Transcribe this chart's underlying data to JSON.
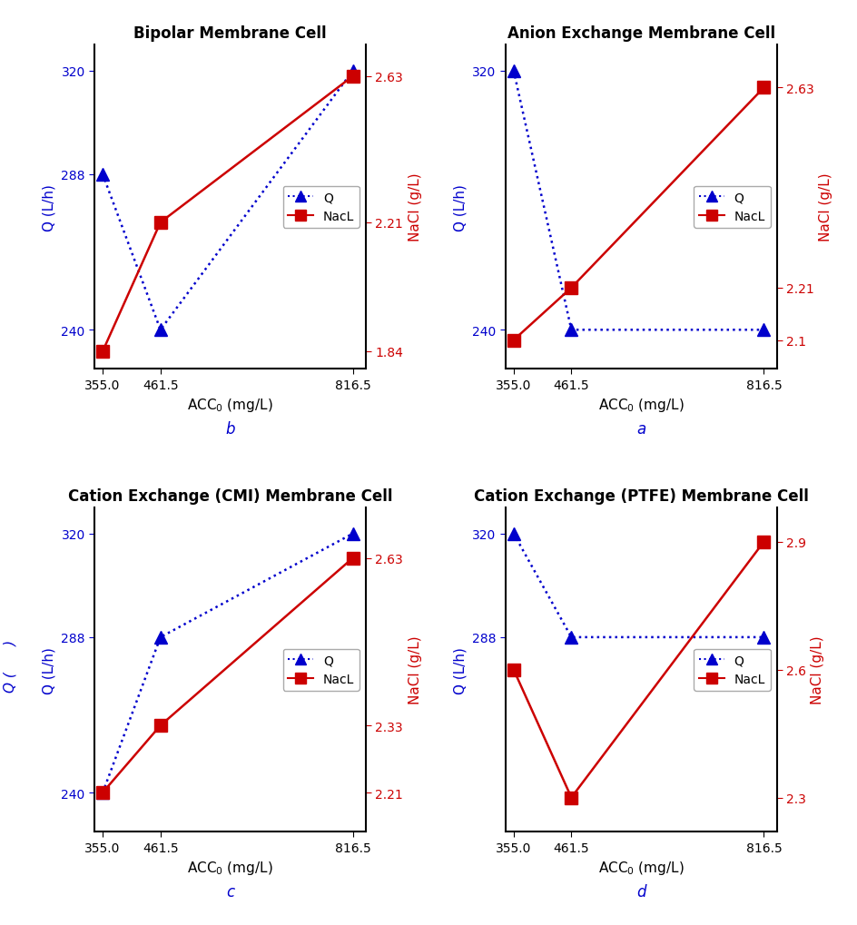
{
  "x": [
    355.0,
    461.5,
    816.5
  ],
  "panels": [
    {
      "title": "Bipolar Membrane Cell",
      "label": "b",
      "Q": [
        288,
        240,
        320
      ],
      "NaCl": [
        1.84,
        2.21,
        2.63
      ],
      "ylim_Q": [
        228,
        328
      ],
      "yticks_Q": [
        240,
        288,
        320
      ],
      "ylim_NaCl": [
        1.79,
        2.72
      ],
      "yticks_NaCl": [
        1.84,
        2.21,
        2.63
      ],
      "Q_line_color": "#0000cc",
      "Q_line_style": "dotted",
      "NaCl_line_color": "#cc0000",
      "NaCl_line_style": "solid",
      "ylabel_left": "Q (L/h)",
      "ylabel_right": "NaCl (g/L)",
      "legend_loc": "center right"
    },
    {
      "title": "Anion Exchange Membrane Cell",
      "label": "a",
      "Q": [
        320,
        240,
        240
      ],
      "NaCl": [
        2.1,
        2.21,
        2.63
      ],
      "ylim_Q": [
        228,
        328
      ],
      "yticks_Q": [
        240,
        320
      ],
      "ylim_NaCl": [
        2.04,
        2.72
      ],
      "yticks_NaCl": [
        2.1,
        2.21,
        2.63
      ],
      "Q_line_color": "#0000cc",
      "Q_line_style": "dotted",
      "NaCl_line_color": "#cc0000",
      "NaCl_line_style": "solid",
      "ylabel_left": "Q (L/h)",
      "ylabel_right": "NaCl (g/L)",
      "legend_loc": "center right"
    },
    {
      "title": "Cation Exchange (CMI) Membrane Cell",
      "label": "c",
      "Q": [
        240,
        288,
        320
      ],
      "NaCl": [
        2.21,
        2.33,
        2.63
      ],
      "ylim_Q": [
        228,
        328
      ],
      "yticks_Q": [
        240,
        288,
        320
      ],
      "ylim_NaCl": [
        2.14,
        2.72
      ],
      "yticks_NaCl": [
        2.21,
        2.33,
        2.63
      ],
      "Q_line_color": "#0000cc",
      "Q_line_style": "dotted",
      "NaCl_line_color": "#cc0000",
      "NaCl_line_style": "solid",
      "ylabel_left": "Q (L/h)",
      "ylabel_right": "NaCl (g/L)",
      "legend_loc": "center right"
    },
    {
      "title": "Cation Exchange (PTFE) Membrane Cell",
      "label": "d",
      "Q": [
        320,
        288,
        288
      ],
      "NaCl": [
        2.6,
        2.3,
        2.9
      ],
      "ylim_Q": [
        228,
        328
      ],
      "yticks_Q": [
        288,
        320
      ],
      "ylim_NaCl": [
        2.22,
        2.98
      ],
      "yticks_NaCl": [
        2.3,
        2.6,
        2.9
      ],
      "Q_line_color": "#0000cc",
      "Q_line_style": "dotted",
      "NaCl_line_color": "#cc0000",
      "NaCl_line_style": "solid",
      "ylabel_left": "Q (L/h)",
      "ylabel_right": "NaCl (g/L)",
      "legend_loc": "center right"
    }
  ],
  "xlabel": "ACC$_0$ (mg/L)",
  "xticks": [
    355.0,
    461.5,
    816.5
  ],
  "xtick_labels": [
    "355.0",
    "461.5",
    "816.5"
  ],
  "xlim": [
    340,
    840
  ]
}
